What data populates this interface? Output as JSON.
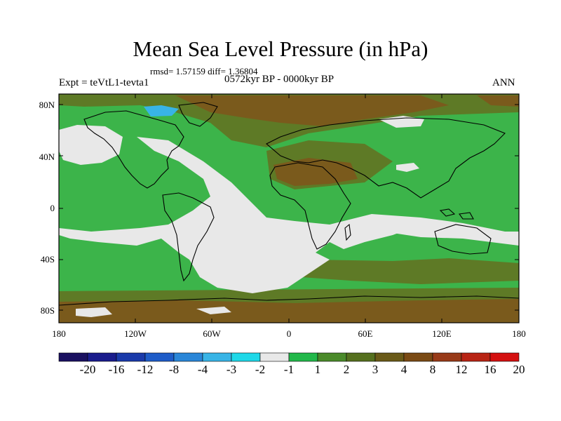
{
  "title": "Mean Sea Level Pressure (in hPa)",
  "stats": "rmsd= 1.57159 diff= 1.36804",
  "period": "0572kyr BP - 0000kyr BP",
  "experiment": "Expt = teVtL1-tevta1",
  "season": "ANN",
  "lat_labels": [
    "80N",
    "40N",
    "0",
    "40S",
    "80S"
  ],
  "lon_labels": [
    "180",
    "120W",
    "60W",
    "0",
    "60E",
    "120E",
    "180"
  ],
  "colorbar": {
    "colors": [
      "#1a1060",
      "#1a1c8c",
      "#1a3aaa",
      "#1e5cc8",
      "#2a86d8",
      "#38b4e6",
      "#1ed8e8",
      "#e8e8e8",
      "#22b84a",
      "#4a8a2a",
      "#55701e",
      "#6a5a18",
      "#7a4a14",
      "#983a18",
      "#b82414",
      "#d41010"
    ],
    "labels": [
      "-20",
      "-16",
      "-12",
      "-8",
      "-4",
      "-3",
      "-2",
      "-1",
      "1",
      "2",
      "3",
      "4",
      "8",
      "12",
      "16",
      "20"
    ]
  },
  "colors": {
    "green": "#3cb44a",
    "darkgreen": "#5e7a26",
    "brown": "#7a5a1c",
    "gray": "#e8e8e8",
    "coast": "#000000"
  }
}
